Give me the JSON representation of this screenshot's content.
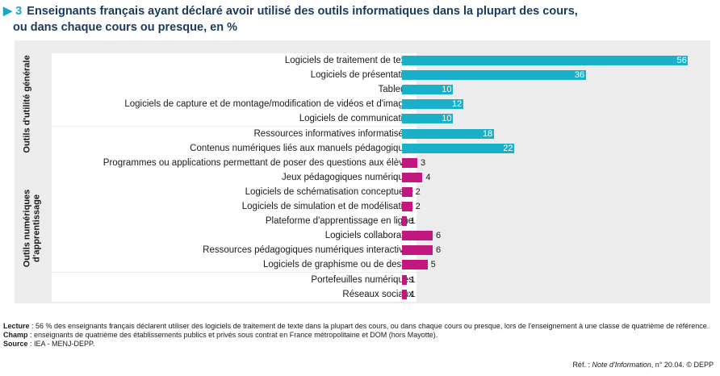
{
  "title": {
    "marker": "▶ 3",
    "line1": "Enseignants français ayant déclaré avoir utilisé des outils informatiques dans la plupart des cours,",
    "line2": "ou dans chaque cours ou presque, en %"
  },
  "colors": {
    "general": "#1ab0c9",
    "learning": "#c2177f",
    "panel": "#ececec"
  },
  "chart_data": {
    "type": "bar",
    "orientation": "horizontal",
    "xlim": [
      0,
      60
    ],
    "groups": [
      {
        "name": "Outils d'utilité générale",
        "color_key": "general",
        "count": 7
      },
      {
        "name": "Outils numériques d'apprentissage",
        "color_key": "learning",
        "count": 10
      }
    ],
    "categories": [
      "Logiciels de traitement de texte",
      "Logiciels de présentation",
      "Tableurs",
      "Logiciels de capture et de montage/modification de vidéos et d'images",
      "Logiciels de communication",
      "Ressources informatives informatisées",
      "Contenus numériques liés aux manuels pédagogiques",
      "Programmes ou applications permettant de poser des questions aux élèves",
      "Jeux pédagogiques numériques",
      "Logiciels de schématisation conceptuelle",
      "Logiciels de simulation et de modélisation",
      "Plateforme d'apprentissage en ligne",
      "Logiciels collaboratifs",
      "Ressources pédagogiques numériques interactives",
      "Logiciels de graphisme ou de dessin",
      "Portefeuilles numériques",
      "Réseaux sociaux"
    ],
    "values": [
      56,
      36,
      10,
      12,
      10,
      18,
      22,
      3,
      4,
      2,
      2,
      1,
      6,
      6,
      5,
      1,
      1
    ]
  },
  "notes": {
    "lecture_label": "Lecture",
    "lecture_text": " : 56 % des enseignants français déclarent utiliser des logiciels de traitement de texte dans la plupart des cours, ou dans chaque cours ou presque, lors de l'enseignement à une classe de quatrième de référence.",
    "champ_label": "Champ",
    "champ_text": " : enseignants de quatrième des établissements publics et privés sous contrat en France métropolitaine et DOM (hors Mayotte).",
    "source_label": "Source",
    "source_text": " : IEA - MENJ-DEPP.",
    "ref_prefix": "Réf. : ",
    "ref_italic": "Note d'Information",
    "ref_suffix": ", n° 20.04. © DEPP"
  }
}
